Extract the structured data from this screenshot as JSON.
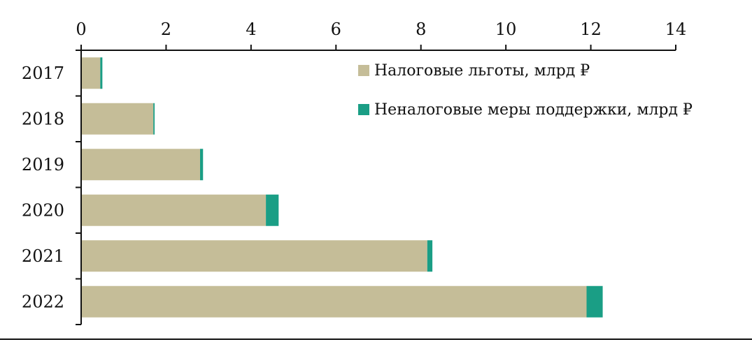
{
  "chart_data": {
    "type": "bar",
    "orientation": "horizontal",
    "stacked": true,
    "categories": [
      "2017",
      "2018",
      "2019",
      "2020",
      "2021",
      "2022"
    ],
    "series": [
      {
        "name": "Налоговые льготы, млрд ₽",
        "color": "#c5bd98",
        "values": [
          0.45,
          1.7,
          2.8,
          4.35,
          8.15,
          11.9
        ]
      },
      {
        "name": "Неналоговые меры поддержки, млрд ₽",
        "color": "#1a9e85",
        "values": [
          0.05,
          0.03,
          0.07,
          0.3,
          0.12,
          0.38
        ]
      }
    ],
    "xlim": [
      0,
      14
    ],
    "xticks": [
      "0",
      "2",
      "4",
      "6",
      "8",
      "10",
      "12",
      "14"
    ],
    "x_axis_position": "top",
    "grid": false,
    "legend_position": "top-right"
  }
}
